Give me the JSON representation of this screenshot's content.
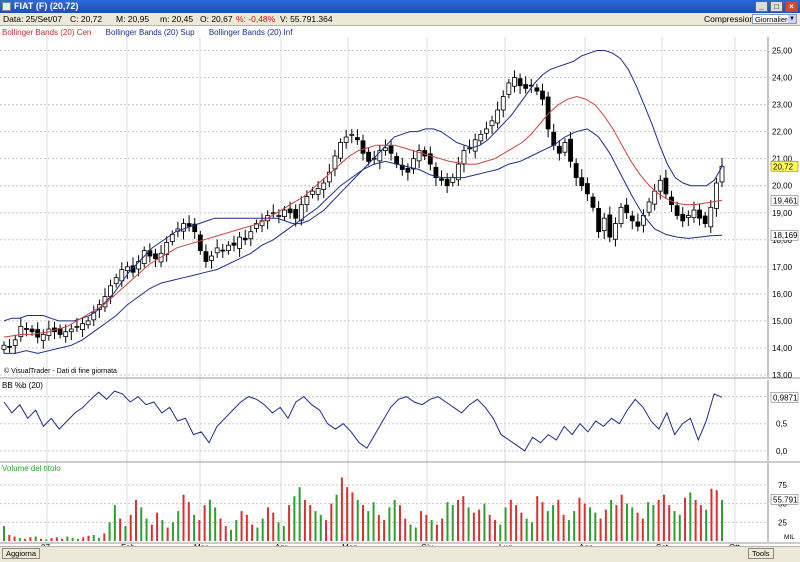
{
  "window": {
    "title": "FIAT (F) (20,72)"
  },
  "infobar": {
    "date": "Data: 25/Set/07",
    "close": "C: 20,72",
    "max": "M: 20,95",
    "min": "m: 20,45",
    "open": "O: 20,67",
    "pct": "%: -0,48%",
    "volume": "V: 55.791.364",
    "compression_label": "Compressione",
    "compression_value": "Giornaliero"
  },
  "legend": {
    "center": "Bollinger Bands (20) Cen",
    "upper": "Bollinger Bands (20) Sup",
    "lower": "Bollinger Bands (20) Inf"
  },
  "credit": "© VisualTrader - Dati di fine giornata",
  "panels": {
    "bb": {
      "title": "BB %b (20)"
    },
    "volume": {
      "title": "Volume del titolo"
    }
  },
  "statusbar": {
    "aggiorna": "Aggiorna",
    "tools": "Tools",
    "mil": "MIL"
  },
  "colors": {
    "bb_line": "#1c2d8c",
    "center_line": "#d04040",
    "vol_up": "#2e9e2e",
    "vol_down": "#d83030",
    "grid": "#c8c8c8"
  },
  "chart_data": [
    {
      "type": "candlestick",
      "title": "FIAT (F) (20,72)",
      "x_labels": [
        "07",
        "Feb",
        "Mar",
        "Apr",
        "Mag",
        "Giu",
        "Lug",
        "Ago",
        "Set",
        "Ott"
      ],
      "y_ticks": [
        "25,00",
        "24,00",
        "23,00",
        "22,00",
        "21,00",
        "20,00",
        "19,00",
        "18,00",
        "17,00",
        "16,00",
        "15,00",
        "14,00",
        "13,00"
      ],
      "ylim": [
        13,
        25.5
      ],
      "last_price": "20,72",
      "center_last": "19,461",
      "lower_last": "18,169",
      "close_series": [
        14.1,
        14.05,
        14.3,
        14.8,
        14.7,
        14.6,
        14.4,
        14.5,
        14.7,
        14.6,
        14.5,
        14.6,
        14.7,
        14.8,
        14.9,
        15.0,
        15.3,
        15.6,
        15.9,
        16.3,
        16.6,
        16.9,
        17.0,
        16.8,
        17.2,
        17.6,
        17.4,
        17.3,
        17.5,
        17.9,
        18.2,
        18.4,
        18.6,
        18.5,
        18.3,
        17.6,
        17.2,
        17.4,
        17.7,
        17.6,
        17.8,
        17.8,
        18.1,
        18.0,
        18.3,
        18.6,
        18.7,
        18.9,
        19.0,
        18.9,
        19.1,
        19.0,
        18.8,
        19.3,
        19.6,
        19.8,
        19.9,
        20.1,
        20.5,
        21.1,
        21.6,
        21.8,
        21.9,
        21.7,
        21.2,
        20.9,
        21.0,
        21.3,
        21.4,
        21.2,
        20.8,
        20.6,
        20.5,
        21.0,
        21.3,
        21.1,
        20.8,
        20.3,
        20.2,
        20.0,
        20.3,
        20.8,
        21.3,
        21.4,
        21.7,
        21.9,
        22.1,
        22.4,
        22.8,
        23.3,
        23.8,
        24.0,
        23.7,
        23.6,
        23.7,
        23.5,
        23.2,
        22.1,
        21.5,
        21.2,
        21.6,
        20.9,
        20.3,
        20.0,
        19.7,
        19.2,
        18.3,
        18.8,
        18.1,
        18.6,
        19.2,
        19.0,
        18.7,
        18.5,
        18.9,
        19.4,
        19.8,
        20.2,
        19.7,
        19.3,
        18.9,
        18.7,
        18.9,
        19.1,
        18.8,
        18.6,
        19.2,
        20.1,
        20.72
      ],
      "upper_band": [
        15.0,
        15.1,
        15.1,
        15.2,
        15.2,
        15.2,
        15.1,
        15.0,
        15.0,
        15.0,
        15.1,
        15.2,
        15.4,
        15.7,
        16.0,
        16.4,
        16.8,
        17.1,
        17.4,
        17.7,
        17.9,
        18.1,
        18.3,
        18.4,
        18.5,
        18.6,
        18.7,
        18.8,
        18.8,
        18.8,
        18.8,
        18.8,
        18.8,
        18.8,
        18.8,
        18.8,
        18.7,
        18.6,
        18.6,
        18.7,
        18.9,
        19.1,
        19.4,
        19.7,
        20.0,
        20.3,
        20.6,
        20.9,
        21.2,
        21.5,
        21.8,
        21.9,
        22.0,
        22.0,
        22.1,
        22.1,
        22.0,
        21.8,
        21.6,
        21.5,
        21.4,
        21.5,
        21.7,
        22.0,
        22.3,
        22.6,
        23.0,
        23.4,
        23.8,
        24.1,
        24.3,
        24.4,
        24.5,
        24.6,
        24.8,
        24.9,
        25.0,
        25.0,
        24.9,
        24.7,
        24.3,
        23.7,
        23.0,
        22.3,
        21.5,
        20.8,
        20.3,
        20.1,
        20.0,
        20.0,
        20.0,
        20.2,
        20.7
      ],
      "center_band": [
        14.4,
        14.45,
        14.5,
        14.5,
        14.55,
        14.6,
        14.7,
        14.8,
        15.0,
        15.2,
        15.4,
        15.6,
        15.9,
        16.2,
        16.5,
        16.8,
        17.1,
        17.3,
        17.5,
        17.7,
        17.8,
        17.9,
        18.0,
        18.1,
        18.2,
        18.3,
        18.4,
        18.5,
        18.6,
        18.8,
        19.0,
        19.2,
        19.4,
        19.6,
        19.9,
        20.2,
        20.5,
        20.8,
        21.1,
        21.3,
        21.4,
        21.5,
        21.5,
        21.5,
        21.4,
        21.3,
        21.2,
        21.1,
        21.0,
        20.9,
        20.85,
        20.8,
        20.8,
        20.9,
        21.0,
        21.2,
        21.4,
        21.6,
        21.9,
        22.3,
        22.7,
        23.0,
        23.2,
        23.3,
        23.2,
        23.0,
        22.6,
        22.1,
        21.5,
        20.9,
        20.4,
        20.0,
        19.7,
        19.5,
        19.35,
        19.3,
        19.3,
        19.35,
        19.4,
        19.461
      ],
      "lower_band": [
        13.8,
        13.8,
        13.9,
        13.8,
        13.9,
        14.0,
        14.1,
        14.3,
        14.6,
        14.9,
        15.2,
        15.6,
        15.9,
        16.2,
        16.4,
        16.5,
        16.6,
        16.7,
        16.8,
        16.9,
        17.1,
        17.3,
        17.5,
        17.8,
        18.0,
        18.3,
        18.6,
        18.9,
        19.2,
        19.6,
        20.0,
        20.3,
        20.6,
        20.8,
        20.9,
        20.8,
        20.7,
        20.6,
        20.4,
        20.3,
        20.3,
        20.3,
        20.4,
        20.5,
        20.6,
        20.8,
        20.9,
        21.1,
        21.3,
        21.5,
        21.8,
        22.0,
        22.1,
        21.8,
        21.2,
        20.4,
        19.6,
        18.9,
        18.4,
        18.2,
        18.1,
        18.05,
        18.1,
        18.15,
        18.169
      ]
    },
    {
      "type": "line",
      "title": "BB %b (20)",
      "y_ticks": [
        "1,0",
        "0,5",
        "0,0"
      ],
      "ylim": [
        -0.15,
        1.25
      ],
      "last_value": "0,9871",
      "values": [
        0.9,
        0.7,
        0.85,
        0.6,
        0.75,
        0.45,
        0.6,
        0.4,
        0.55,
        0.7,
        0.8,
        0.95,
        1.08,
        0.95,
        1.1,
        1.05,
        0.9,
        1.0,
        0.85,
        0.9,
        0.7,
        0.8,
        0.55,
        0.6,
        0.3,
        0.35,
        0.15,
        0.45,
        0.6,
        0.75,
        0.9,
        1.0,
        0.95,
        0.85,
        0.7,
        0.8,
        0.6,
        0.9,
        1.0,
        0.85,
        0.75,
        0.5,
        0.4,
        0.5,
        0.35,
        0.15,
        0.05,
        0.3,
        0.55,
        0.8,
        0.95,
        1.0,
        0.9,
        0.85,
        0.95,
        1.0,
        0.9,
        0.8,
        0.7,
        0.85,
        0.95,
        0.8,
        0.6,
        0.3,
        0.2,
        0.1,
        0.0,
        0.25,
        0.15,
        0.3,
        0.2,
        0.45,
        0.3,
        0.5,
        0.35,
        0.55,
        0.45,
        0.6,
        0.5,
        0.75,
        0.95,
        0.8,
        0.55,
        0.4,
        0.7,
        0.3,
        0.5,
        0.6,
        0.2,
        0.55,
        1.05,
        0.9871
      ]
    },
    {
      "type": "bar",
      "title": "Volume del titolo",
      "y_ticks": [
        "75",
        "50",
        "25"
      ],
      "ylim": [
        0,
        95
      ],
      "last_value": "55.791",
      "unit": "MIL",
      "values": [
        20,
        8,
        6,
        4,
        3,
        5,
        6,
        3,
        2,
        4,
        5,
        3,
        6,
        4,
        3,
        5,
        7,
        8,
        4,
        10,
        25,
        48,
        30,
        20,
        35,
        55,
        45,
        30,
        22,
        38,
        28,
        18,
        25,
        40,
        62,
        52,
        35,
        28,
        48,
        55,
        45,
        30,
        20,
        15,
        28,
        40,
        35,
        22,
        18,
        30,
        45,
        38,
        25,
        20,
        48,
        60,
        72,
        55,
        48,
        40,
        35,
        28,
        50,
        62,
        85,
        72,
        65,
        55,
        48,
        40,
        52,
        35,
        28,
        45,
        55,
        48,
        30,
        22,
        18,
        40,
        35,
        28,
        22,
        30,
        52,
        48,
        55,
        60,
        45,
        38,
        42,
        50,
        35,
        28,
        22,
        45,
        55,
        48,
        38,
        30,
        25,
        60,
        52,
        40,
        48,
        55,
        35,
        28,
        40,
        58,
        50,
        45,
        38,
        30,
        42,
        55,
        48,
        62,
        50,
        45,
        38,
        30,
        52,
        48,
        55,
        62,
        48,
        40,
        35,
        58,
        65,
        55,
        48,
        42,
        70,
        68,
        55
      ],
      "colors": "udduddududdduuudduuduududduudduduuddudduudduuddduudduuduudduudduddduduudduudduuddudduudduddudduuddduudduudduudduuddudduudduuddduud"
    }
  ]
}
